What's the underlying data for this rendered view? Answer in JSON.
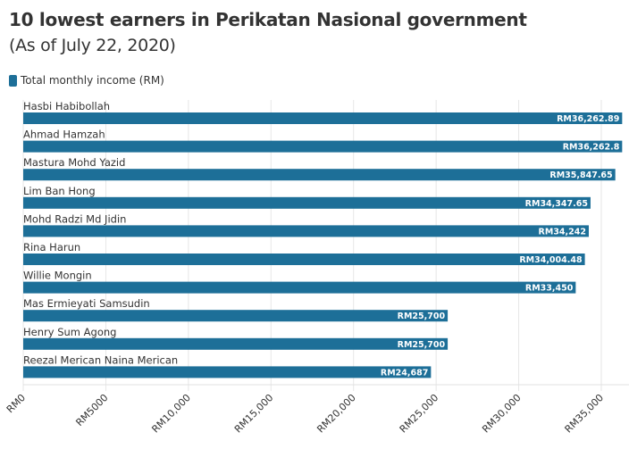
{
  "chart_data": {
    "type": "bar",
    "orientation": "horizontal",
    "title": "10 lowest earners in Perikatan Nasional government",
    "subtitle": "(As of July 22, 2020)",
    "legend": [
      "Total monthly income (RM)"
    ],
    "legend_placement": "top-left",
    "categories": [
      "Hasbi Habibollah",
      "Ahmad Hamzah",
      "Mastura Mohd Yazid",
      "Lim Ban Hong",
      "Mohd Radzi Md Jidin",
      "Rina Harun",
      "Willie Mongin",
      "Mas Ermieyati Samsudin",
      "Henry Sum Agong",
      "Reezal Merican Naina Merican"
    ],
    "values": [
      36262.89,
      36262.8,
      35847.65,
      34347.65,
      34242,
      34004.48,
      33450,
      25700,
      25700,
      24687
    ],
    "value_labels": [
      "RM36,262.89",
      "RM36,262.8",
      "RM35,847.65",
      "RM34,347.65",
      "RM34,242",
      "RM34,004.48",
      "RM33,450",
      "RM25,700",
      "RM25,700",
      "RM24,687"
    ],
    "xlim": [
      0,
      36262.89
    ],
    "xticks": [
      0,
      5000,
      10000,
      15000,
      20000,
      25000,
      30000,
      35000
    ],
    "xtick_labels": [
      "RM0",
      "RM5000",
      "RM10,000",
      "RM15,000",
      "RM20,000",
      "RM25,000",
      "RM30,000",
      "RM35,000"
    ],
    "grid": true,
    "colors": {
      "bar": "#1d6f98",
      "label": "#ffffff",
      "grid": "#e6e6e6"
    }
  }
}
